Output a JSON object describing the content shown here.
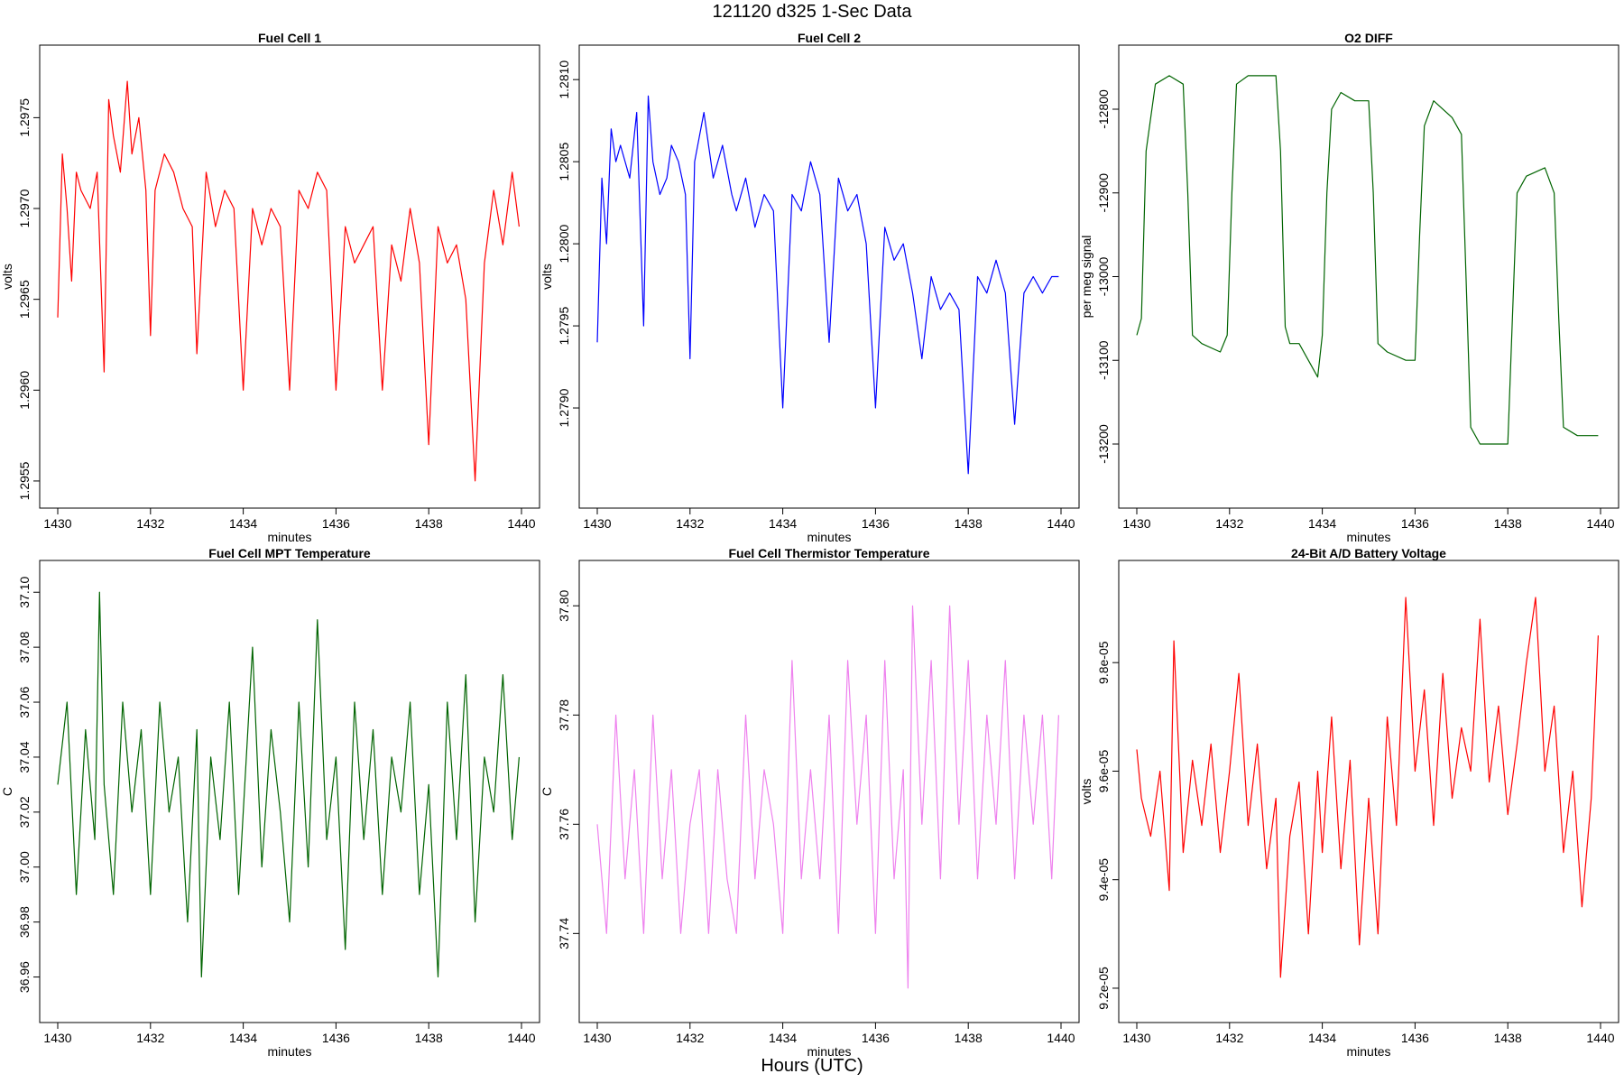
{
  "figure": {
    "suptitle": "121120   d325   1-Sec Data",
    "bottom_label": "Hours (UTC)"
  },
  "chart_data": [
    {
      "type": "line",
      "title": "Fuel Cell 1",
      "xlabel": "minutes",
      "ylabel": "volts",
      "color": "#ff0000",
      "xlim": [
        1430,
        1440
      ],
      "ylim": [
        1.29545,
        1.2978
      ],
      "xticks": [
        "1430",
        "1432",
        "1434",
        "1436",
        "1438",
        "1440"
      ],
      "yticks": [
        "1.2955",
        "1.2960",
        "1.2965",
        "1.2970",
        "1.2975"
      ],
      "series": [
        {
          "x": [
            1430.0,
            1430.1,
            1430.2,
            1430.3,
            1430.4,
            1430.5,
            1430.7,
            1430.85,
            1431.0,
            1431.1,
            1431.2,
            1431.35,
            1431.5,
            1431.6,
            1431.75,
            1431.9,
            1432.0,
            1432.1,
            1432.3,
            1432.5,
            1432.7,
            1432.9,
            1433.0,
            1433.2,
            1433.4,
            1433.6,
            1433.8,
            1434.0,
            1434.2,
            1434.4,
            1434.6,
            1434.8,
            1435.0,
            1435.2,
            1435.4,
            1435.6,
            1435.8,
            1436.0,
            1436.2,
            1436.4,
            1436.6,
            1436.8,
            1437.0,
            1437.2,
            1437.4,
            1437.6,
            1437.8,
            1438.0,
            1438.2,
            1438.4,
            1438.6,
            1438.8,
            1439.0,
            1439.2,
            1439.4,
            1439.6,
            1439.8,
            1439.95
          ],
          "y": [
            1.2964,
            1.2973,
            1.297,
            1.2966,
            1.2972,
            1.2971,
            1.297,
            1.2972,
            1.2961,
            1.2976,
            1.2974,
            1.2972,
            1.2977,
            1.2973,
            1.2975,
            1.2971,
            1.2963,
            1.2971,
            1.2973,
            1.2972,
            1.297,
            1.2969,
            1.2962,
            1.2972,
            1.2969,
            1.2971,
            1.297,
            1.296,
            1.297,
            1.2968,
            1.297,
            1.2969,
            1.296,
            1.2971,
            1.297,
            1.2972,
            1.2971,
            1.296,
            1.2969,
            1.2967,
            1.2968,
            1.2969,
            1.296,
            1.2968,
            1.2966,
            1.297,
            1.2967,
            1.2957,
            1.2969,
            1.2967,
            1.2968,
            1.2965,
            1.2955,
            1.2967,
            1.2971,
            1.2968,
            1.2972,
            1.2969
          ]
        }
      ]
    },
    {
      "type": "line",
      "title": "Fuel Cell 2",
      "xlabel": "minutes",
      "ylabel": "volts",
      "color": "#0000ff",
      "xlim": [
        1430,
        1440
      ],
      "ylim": [
        1.2785,
        1.2811
      ],
      "xticks": [
        "1430",
        "1432",
        "1434",
        "1436",
        "1438",
        "1440"
      ],
      "yticks": [
        "1.2790",
        "1.2795",
        "1.2800",
        "1.2805",
        "1.2810"
      ],
      "series": [
        {
          "x": [
            1430.0,
            1430.1,
            1430.2,
            1430.3,
            1430.4,
            1430.5,
            1430.7,
            1430.85,
            1431.0,
            1431.1,
            1431.2,
            1431.35,
            1431.5,
            1431.6,
            1431.75,
            1431.9,
            1432.0,
            1432.1,
            1432.3,
            1432.5,
            1432.7,
            1432.9,
            1433.0,
            1433.2,
            1433.4,
            1433.6,
            1433.8,
            1434.0,
            1434.2,
            1434.4,
            1434.6,
            1434.8,
            1435.0,
            1435.2,
            1435.4,
            1435.6,
            1435.8,
            1436.0,
            1436.2,
            1436.4,
            1436.6,
            1436.8,
            1437.0,
            1437.2,
            1437.4,
            1437.6,
            1437.8,
            1438.0,
            1438.2,
            1438.4,
            1438.6,
            1438.8,
            1439.0,
            1439.2,
            1439.4,
            1439.6,
            1439.8,
            1439.95
          ],
          "y": [
            1.2794,
            1.2804,
            1.28,
            1.2807,
            1.2805,
            1.2806,
            1.2804,
            1.2808,
            1.2795,
            1.2809,
            1.2805,
            1.2803,
            1.2804,
            1.2806,
            1.2805,
            1.2803,
            1.2793,
            1.2805,
            1.2808,
            1.2804,
            1.2806,
            1.2803,
            1.2802,
            1.2804,
            1.2801,
            1.2803,
            1.2802,
            1.279,
            1.2803,
            1.2802,
            1.2805,
            1.2803,
            1.2794,
            1.2804,
            1.2802,
            1.2803,
            1.28,
            1.279,
            1.2801,
            1.2799,
            1.28,
            1.2797,
            1.2793,
            1.2798,
            1.2796,
            1.2797,
            1.2796,
            1.2786,
            1.2798,
            1.2797,
            1.2799,
            1.2797,
            1.2789,
            1.2797,
            1.2798,
            1.2797,
            1.2798,
            1.2798
          ]
        }
      ]
    },
    {
      "type": "line",
      "title": "O2 DIFF",
      "xlabel": "minutes",
      "ylabel": "per meg signal",
      "color": "#006400",
      "xlim": [
        1430,
        1440
      ],
      "ylim": [
        -13255,
        -12745
      ],
      "xticks": [
        "1430",
        "1432",
        "1434",
        "1436",
        "1438",
        "1440"
      ],
      "yticks": [
        "-13200",
        "-13100",
        "-13000",
        "-12900",
        "-12800"
      ],
      "series": [
        {
          "x": [
            1430.0,
            1430.1,
            1430.2,
            1430.4,
            1430.7,
            1431.0,
            1431.1,
            1431.2,
            1431.4,
            1431.8,
            1431.95,
            1432.05,
            1432.15,
            1432.4,
            1432.7,
            1433.0,
            1433.1,
            1433.2,
            1433.3,
            1433.5,
            1433.9,
            1434.0,
            1434.1,
            1434.2,
            1434.4,
            1434.7,
            1435.0,
            1435.1,
            1435.2,
            1435.4,
            1435.8,
            1436.0,
            1436.1,
            1436.2,
            1436.4,
            1436.8,
            1437.0,
            1437.1,
            1437.2,
            1437.4,
            1437.8,
            1438.0,
            1438.1,
            1438.2,
            1438.4,
            1438.8,
            1439.0,
            1439.1,
            1439.2,
            1439.5,
            1439.95
          ],
          "y": [
            -13070,
            -13050,
            -12850,
            -12770,
            -12760,
            -12770,
            -12900,
            -13070,
            -13080,
            -13090,
            -13070,
            -12900,
            -12770,
            -12760,
            -12760,
            -12760,
            -12850,
            -13060,
            -13080,
            -13080,
            -13120,
            -13070,
            -12900,
            -12800,
            -12780,
            -12790,
            -12790,
            -12900,
            -13080,
            -13090,
            -13100,
            -13100,
            -12950,
            -12820,
            -12790,
            -12810,
            -12830,
            -13000,
            -13180,
            -13200,
            -13200,
            -13200,
            -13050,
            -12900,
            -12880,
            -12870,
            -12900,
            -13050,
            -13180,
            -13190,
            -13190
          ]
        }
      ]
    },
    {
      "type": "line",
      "title": "Fuel Cell MPT Temperature",
      "xlabel": "minutes",
      "ylabel": "C",
      "color": "#006400",
      "xlim": [
        1430,
        1440
      ],
      "ylim": [
        36.95,
        37.105
      ],
      "xticks": [
        "1430",
        "1432",
        "1434",
        "1436",
        "1438",
        "1440"
      ],
      "yticks": [
        "36.96",
        "36.98",
        "37.00",
        "37.02",
        "37.04",
        "37.06",
        "37.08",
        "37.10"
      ],
      "series": [
        {
          "x": [
            1430.0,
            1430.2,
            1430.4,
            1430.6,
            1430.8,
            1430.9,
            1431.0,
            1431.2,
            1431.4,
            1431.6,
            1431.8,
            1432.0,
            1432.2,
            1432.4,
            1432.6,
            1432.8,
            1433.0,
            1433.1,
            1433.3,
            1433.5,
            1433.7,
            1433.9,
            1434.0,
            1434.2,
            1434.4,
            1434.6,
            1434.8,
            1435.0,
            1435.2,
            1435.4,
            1435.6,
            1435.8,
            1436.0,
            1436.2,
            1436.4,
            1436.6,
            1436.8,
            1437.0,
            1437.2,
            1437.4,
            1437.6,
            1437.8,
            1438.0,
            1438.2,
            1438.4,
            1438.6,
            1438.8,
            1439.0,
            1439.2,
            1439.4,
            1439.6,
            1439.8,
            1439.95
          ],
          "y": [
            37.03,
            37.06,
            36.99,
            37.05,
            37.01,
            37.1,
            37.03,
            36.99,
            37.06,
            37.02,
            37.05,
            36.99,
            37.06,
            37.02,
            37.04,
            36.98,
            37.05,
            36.96,
            37.04,
            37.01,
            37.06,
            36.99,
            37.02,
            37.08,
            37.0,
            37.05,
            37.02,
            36.98,
            37.06,
            37.0,
            37.09,
            37.01,
            37.04,
            36.97,
            37.06,
            37.01,
            37.05,
            36.99,
            37.04,
            37.02,
            37.06,
            36.99,
            37.03,
            36.96,
            37.06,
            37.01,
            37.07,
            36.98,
            37.04,
            37.02,
            37.07,
            37.01,
            37.04
          ]
        }
      ]
    },
    {
      "type": "line",
      "title": "Fuel Cell Thermistor Temperature",
      "xlabel": "minutes",
      "ylabel": "C",
      "color": "#ee82ee",
      "xlim": [
        1430,
        1440
      ],
      "ylim": [
        37.727,
        37.805
      ],
      "xticks": [
        "1430",
        "1432",
        "1434",
        "1436",
        "1438",
        "1440"
      ],
      "yticks": [
        "37.74",
        "37.76",
        "37.78",
        "37.80"
      ],
      "series": [
        {
          "x": [
            1430.0,
            1430.2,
            1430.4,
            1430.6,
            1430.8,
            1431.0,
            1431.2,
            1431.4,
            1431.6,
            1431.8,
            1432.0,
            1432.2,
            1432.4,
            1432.6,
            1432.8,
            1433.0,
            1433.2,
            1433.4,
            1433.6,
            1433.8,
            1434.0,
            1434.2,
            1434.4,
            1434.6,
            1434.8,
            1435.0,
            1435.2,
            1435.4,
            1435.6,
            1435.8,
            1436.0,
            1436.2,
            1436.4,
            1436.6,
            1436.7,
            1436.8,
            1437.0,
            1437.2,
            1437.4,
            1437.6,
            1437.8,
            1438.0,
            1438.2,
            1438.4,
            1438.6,
            1438.8,
            1439.0,
            1439.2,
            1439.4,
            1439.6,
            1439.8,
            1439.95
          ],
          "y": [
            37.76,
            37.74,
            37.78,
            37.75,
            37.77,
            37.74,
            37.78,
            37.75,
            37.77,
            37.74,
            37.76,
            37.77,
            37.74,
            37.77,
            37.75,
            37.74,
            37.78,
            37.75,
            37.77,
            37.76,
            37.74,
            37.79,
            37.75,
            37.77,
            37.75,
            37.78,
            37.74,
            37.79,
            37.76,
            37.78,
            37.74,
            37.79,
            37.75,
            37.77,
            37.73,
            37.8,
            37.76,
            37.79,
            37.75,
            37.8,
            37.76,
            37.79,
            37.75,
            37.78,
            37.76,
            37.79,
            37.75,
            37.78,
            37.76,
            37.78,
            37.75,
            37.78
          ]
        }
      ]
    },
    {
      "type": "line",
      "title": "24-Bit A/D Battery Voltage",
      "xlabel": "minutes",
      "ylabel": "volts",
      "color": "#ff0000",
      "xlim": [
        1430,
        1440
      ],
      "ylim": [
        9.17e-05,
        9.955e-05
      ],
      "xticks": [
        "1430",
        "1432",
        "1434",
        "1436",
        "1438",
        "1440"
      ],
      "yticks": [
        "9.2e-05",
        "9.4e-05",
        "9.6e-05",
        "9.8e-05"
      ],
      "series": [
        {
          "x": [
            1430.0,
            1430.1,
            1430.3,
            1430.5,
            1430.7,
            1430.8,
            1431.0,
            1431.2,
            1431.4,
            1431.6,
            1431.8,
            1432.0,
            1432.2,
            1432.4,
            1432.6,
            1432.8,
            1433.0,
            1433.1,
            1433.3,
            1433.5,
            1433.7,
            1433.9,
            1434.0,
            1434.2,
            1434.4,
            1434.6,
            1434.8,
            1435.0,
            1435.2,
            1435.4,
            1435.6,
            1435.8,
            1436.0,
            1436.2,
            1436.4,
            1436.6,
            1436.8,
            1437.0,
            1437.2,
            1437.4,
            1437.6,
            1437.8,
            1438.0,
            1438.2,
            1438.4,
            1438.6,
            1438.8,
            1439.0,
            1439.2,
            1439.4,
            1439.6,
            1439.8,
            1439.95
          ],
          "y": [
            9.64e-05,
            9.55e-05,
            9.48e-05,
            9.6e-05,
            9.38e-05,
            9.84e-05,
            9.45e-05,
            9.62e-05,
            9.5e-05,
            9.65e-05,
            9.45e-05,
            9.6e-05,
            9.78e-05,
            9.5e-05,
            9.65e-05,
            9.42e-05,
            9.55e-05,
            9.22e-05,
            9.48e-05,
            9.58e-05,
            9.3e-05,
            9.6e-05,
            9.45e-05,
            9.7e-05,
            9.42e-05,
            9.62e-05,
            9.28e-05,
            9.55e-05,
            9.3e-05,
            9.7e-05,
            9.5e-05,
            9.92e-05,
            9.6e-05,
            9.75e-05,
            9.5e-05,
            9.78e-05,
            9.55e-05,
            9.68e-05,
            9.6e-05,
            9.88e-05,
            9.58e-05,
            9.72e-05,
            9.52e-05,
            9.65e-05,
            9.8e-05,
            9.92e-05,
            9.6e-05,
            9.72e-05,
            9.45e-05,
            9.6e-05,
            9.35e-05,
            9.55e-05,
            9.85e-05
          ]
        }
      ]
    }
  ]
}
